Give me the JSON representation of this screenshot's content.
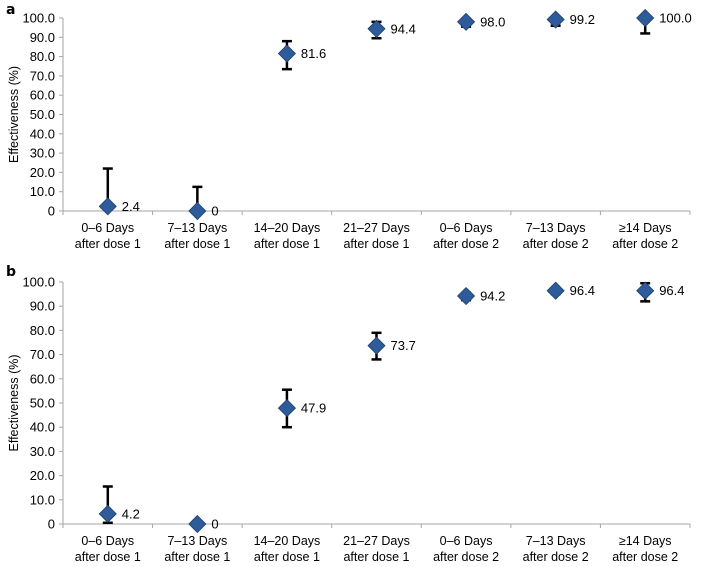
{
  "chart_data": [
    {
      "panel_label": "a",
      "type": "scatter",
      "ylabel": "Effectiveness (%)",
      "ylim": [
        0,
        100
      ],
      "yticks": [
        "0",
        "10.0",
        "20.0",
        "30.0",
        "40.0",
        "50.0",
        "60.0",
        "70.0",
        "80.0",
        "90.0",
        "100.0"
      ],
      "categories": [
        [
          "0–6 Days",
          "after dose 1"
        ],
        [
          "7–13 Days",
          "after dose 1"
        ],
        [
          "14–20 Days",
          "after dose 1"
        ],
        [
          "21–27 Days",
          "after dose 1"
        ],
        [
          "0–6 Days",
          "after dose 2"
        ],
        [
          "7–13 Days",
          "after dose 2"
        ],
        [
          "≥14 Days",
          "after dose 2"
        ]
      ],
      "values": [
        2.4,
        0,
        81.6,
        94.4,
        98.0,
        99.2,
        100.0
      ],
      "labels": [
        "2.4",
        "0",
        "81.6",
        "94.4",
        "98.0",
        "99.2",
        "100.0"
      ],
      "error_low": [
        null,
        null,
        73.5,
        89.5,
        95.5,
        96.0,
        92.0
      ],
      "error_high": [
        22.0,
        12.5,
        88.0,
        98.0,
        99.5,
        99.8,
        null
      ],
      "marker_color": "#2e5b9a"
    },
    {
      "panel_label": "b",
      "type": "scatter",
      "ylabel": "Effectiveness (%)",
      "ylim": [
        0,
        100
      ],
      "yticks": [
        "0",
        "10.0",
        "20.0",
        "30.0",
        "40.0",
        "50.0",
        "60.0",
        "70.0",
        "80.0",
        "90.0",
        "100.0"
      ],
      "categories": [
        [
          "0–6 Days",
          "after dose 1"
        ],
        [
          "7–13 Days",
          "after dose 1"
        ],
        [
          "14–20 Days",
          "after dose 1"
        ],
        [
          "21–27 Days",
          "after dose 1"
        ],
        [
          "0–6 Days",
          "after dose 2"
        ],
        [
          "7–13 Days",
          "after dose 2"
        ],
        [
          "≥14 Days",
          "after dose 2"
        ]
      ],
      "values": [
        4.2,
        0,
        47.9,
        73.7,
        94.2,
        96.4,
        96.4
      ],
      "labels": [
        "4.2",
        "0",
        "47.9",
        "73.7",
        "94.2",
        "96.4",
        "96.4"
      ],
      "error_low": [
        0.5,
        null,
        40.0,
        68.0,
        92.5,
        95.0,
        92.0
      ],
      "error_high": [
        15.5,
        null,
        55.5,
        79.0,
        95.5,
        97.5,
        99.5
      ],
      "marker_color": "#2e5b9a"
    }
  ]
}
